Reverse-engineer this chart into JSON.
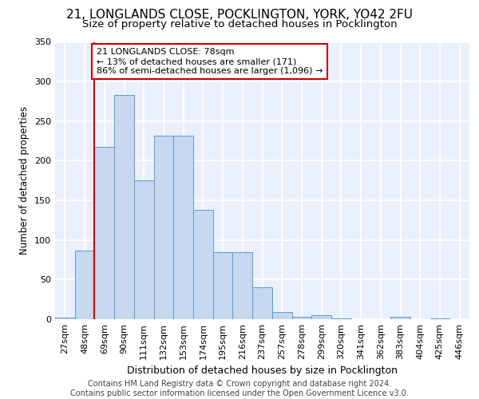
{
  "title1": "21, LONGLANDS CLOSE, POCKLINGTON, YORK, YO42 2FU",
  "title2": "Size of property relative to detached houses in Pocklington",
  "xlabel": "Distribution of detached houses by size in Pocklington",
  "ylabel": "Number of detached properties",
  "categories": [
    "27sqm",
    "48sqm",
    "69sqm",
    "90sqm",
    "111sqm",
    "132sqm",
    "153sqm",
    "174sqm",
    "195sqm",
    "216sqm",
    "237sqm",
    "257sqm",
    "278sqm",
    "299sqm",
    "320sqm",
    "341sqm",
    "362sqm",
    "383sqm",
    "404sqm",
    "425sqm",
    "446sqm"
  ],
  "values": [
    2,
    87,
    218,
    283,
    175,
    232,
    232,
    138,
    85,
    85,
    40,
    9,
    3,
    5,
    1,
    0,
    0,
    3,
    0,
    1,
    0
  ],
  "bar_color": "#c5d8f0",
  "bar_edge_color": "#5b9bd5",
  "vline_x": 1.5,
  "vline_color": "#cc0000",
  "annotation_text": "21 LONGLANDS CLOSE: 78sqm\n← 13% of detached houses are smaller (171)\n86% of semi-detached houses are larger (1,096) →",
  "annotation_box_color": "#ffffff",
  "annotation_box_edge": "#cc0000",
  "footnote": "Contains HM Land Registry data © Crown copyright and database right 2024.\nContains public sector information licensed under the Open Government Licence v3.0.",
  "ylim": [
    0,
    350
  ],
  "yticks": [
    0,
    50,
    100,
    150,
    200,
    250,
    300,
    350
  ],
  "bg_color": "#eaf0fb",
  "grid_color": "#ffffff",
  "title1_fontsize": 11,
  "title2_fontsize": 9.5,
  "xlabel_fontsize": 9,
  "ylabel_fontsize": 8.5,
  "tick_fontsize": 8,
  "footnote_fontsize": 7
}
